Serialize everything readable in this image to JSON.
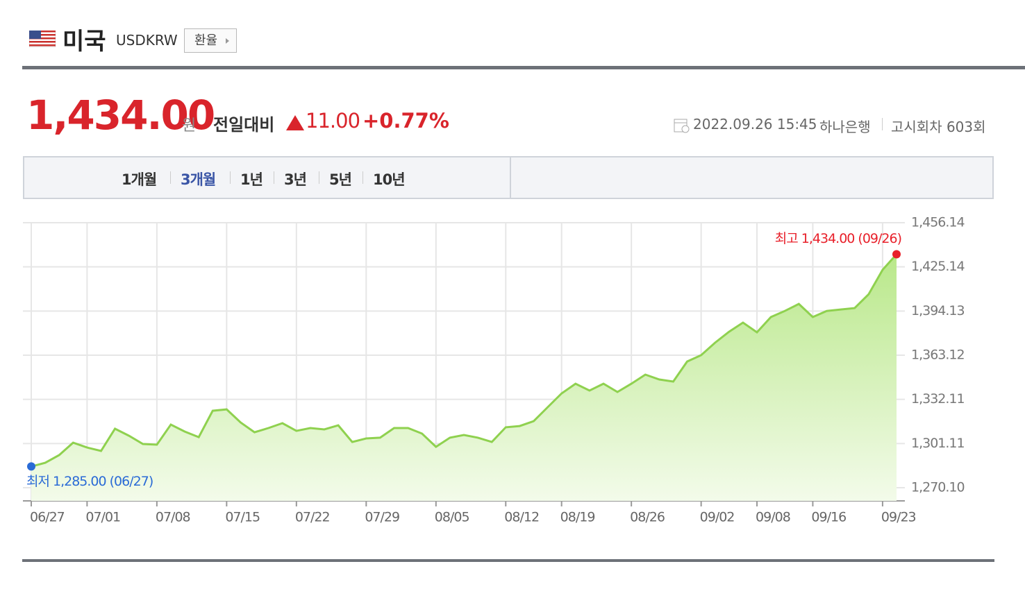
{
  "header": {
    "country": "미국",
    "code": "USDKRW",
    "button": "환율"
  },
  "quote": {
    "price": "1,434.00",
    "unit": "원",
    "change_label": "전일대비",
    "change": "11.00",
    "change_pct": "+0.77%",
    "datetime": "2022.09.26 15:45",
    "bank": "하나은행",
    "round": "고시회차 603회"
  },
  "tabs": {
    "items": [
      "1개월",
      "3개월",
      "1년",
      "3년",
      "5년",
      "10년"
    ],
    "selected": 1
  },
  "chart_data": {
    "type": "area",
    "color": "#8fd14f",
    "categories": [
      "06/27",
      null,
      null,
      null,
      "07/01",
      null,
      null,
      null,
      null,
      "07/08",
      null,
      null,
      null,
      null,
      "07/15",
      null,
      null,
      null,
      null,
      "07/22",
      null,
      null,
      null,
      null,
      "07/29",
      null,
      null,
      null,
      null,
      "08/05",
      null,
      null,
      null,
      null,
      "08/12",
      null,
      null,
      null,
      "08/19",
      null,
      null,
      null,
      null,
      "08/26",
      null,
      null,
      null,
      null,
      "09/02",
      null,
      null,
      null,
      "09/08",
      null,
      null,
      null,
      "09/16",
      null,
      null,
      null,
      null,
      "09/23",
      null
    ],
    "values": [
      1285.0,
      1287.6,
      1293.0,
      1301.7,
      1298.3,
      1295.9,
      1311.5,
      1306.6,
      1300.8,
      1300.3,
      1314.4,
      1309.5,
      1305.6,
      1324.1,
      1325.1,
      1315.9,
      1309.0,
      1312.0,
      1315.4,
      1310.0,
      1312.0,
      1311.0,
      1313.9,
      1302.2,
      1304.7,
      1305.2,
      1312.0,
      1312.0,
      1308.1,
      1298.8,
      1305.2,
      1307.1,
      1305.2,
      1302.2,
      1312.5,
      1313.4,
      1316.8,
      1326.6,
      1336.3,
      1343.1,
      1338.3,
      1343.1,
      1337.3,
      1343.1,
      1349.5,
      1346.1,
      1344.6,
      1358.7,
      1363.1,
      1371.9,
      1379.6,
      1386.0,
      1379.2,
      1389.9,
      1394.2,
      1399.1,
      1389.9,
      1394.2,
      1395.2,
      1396.2,
      1405.9,
      1423.0,
      1434.0
    ],
    "max_label": "최고 1,434.00 (09/26)",
    "min_label": "최저 1,285.00 (06/27)",
    "ylim": [
      1260.85,
      1456.14
    ],
    "yticks": [
      {
        "value": 1270.1,
        "label": "1,270.10"
      },
      {
        "value": 1301.11,
        "label": "1,301.11"
      },
      {
        "value": 1332.11,
        "label": "1,332.11"
      },
      {
        "value": 1363.12,
        "label": "1,363.12"
      },
      {
        "value": 1394.13,
        "label": "1,394.13"
      },
      {
        "value": 1425.14,
        "label": "1,425.14"
      },
      {
        "value": 1456.14,
        "label": "1,456.14"
      }
    ],
    "grid": true
  }
}
